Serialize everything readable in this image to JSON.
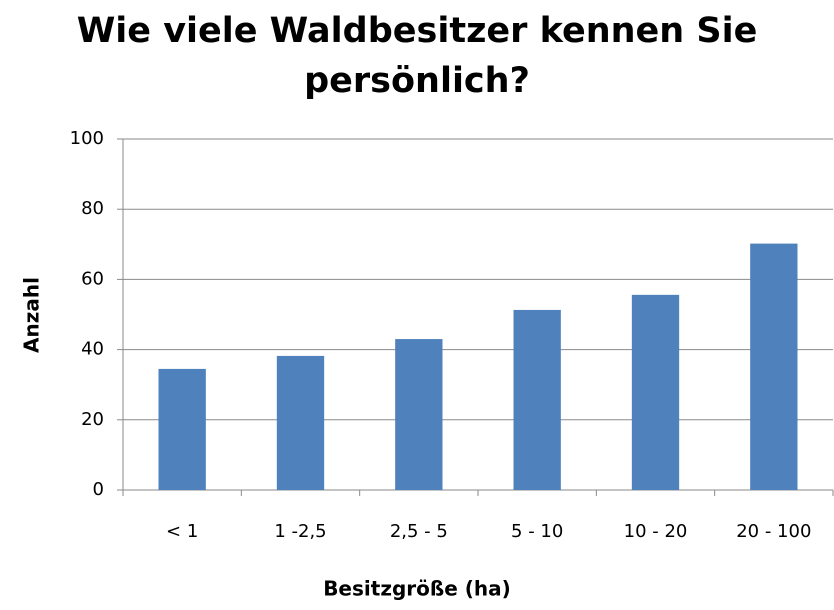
{
  "chart_data": {
    "type": "bar",
    "title": "Wie viele Waldbesitzer kennen Sie persönlich?",
    "x_label": "Besitzgröße (ha)",
    "y_label": "Anzahl",
    "categories": [
      "< 1",
      "1 -2,5",
      "2,5 - 5",
      "5 - 10",
      "10 - 20",
      "20 - 100"
    ],
    "values": [
      34.5,
      38.2,
      43,
      51.3,
      55.6,
      70.2
    ],
    "color": "#4f81bd",
    "ylim": [
      0,
      100
    ],
    "yticks": [
      0,
      20,
      40,
      60,
      80,
      100
    ],
    "grid": true
  }
}
